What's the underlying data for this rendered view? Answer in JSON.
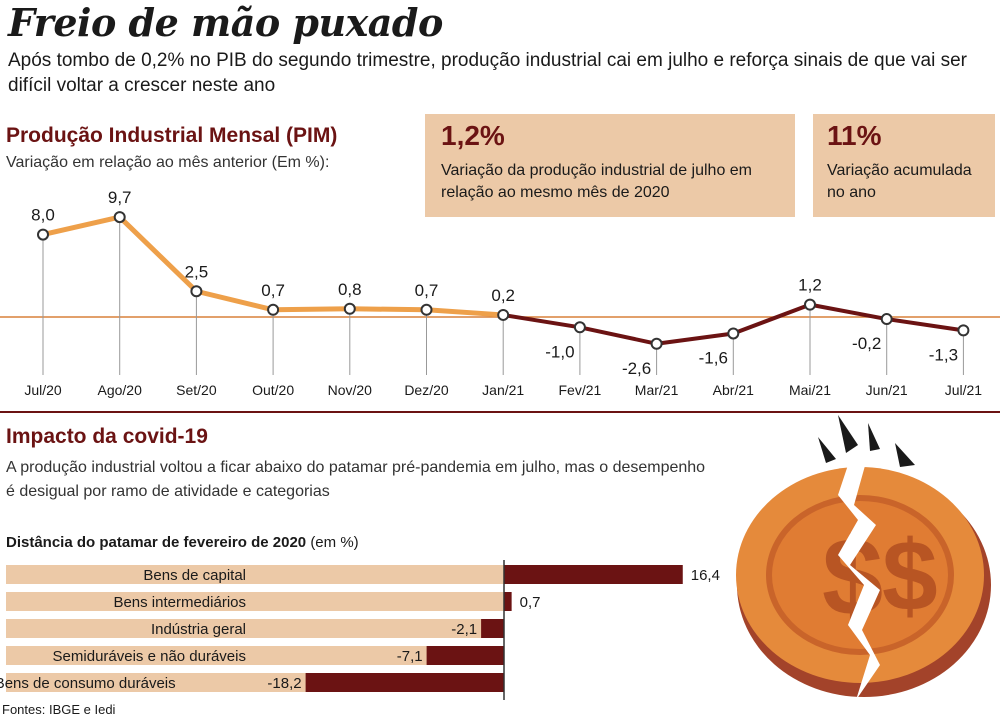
{
  "header": {
    "title": "Freio de mão puxado",
    "subtitle": "Após tombo de 0,2% no PIB do segundo trimestre, produção industrial cai em julho e reforça sinais de que vai ser difícil voltar a crescer neste ano"
  },
  "pim": {
    "title": "Produção Industrial Mensal (PIM)",
    "subtitle": "Variação em relação ao mês anterior (Em %):"
  },
  "cards": [
    {
      "value": "1,2%",
      "text": "Variação da produção industrial de julho em relação ao mesmo mês de 2020"
    },
    {
      "value": "11%",
      "text": "Variação acumulada no ano"
    }
  ],
  "covid": {
    "title": "Impacto da covid-19",
    "text": "A produção industrial voltou a ficar abaixo do patamar pré-pandemia em julho, mas o desempenho é desigual por ramo de atividade e categorias",
    "bar_title": "Distância do patamar de fevereiro de 2020",
    "bar_title_unit": "(em %)"
  },
  "sources": "Fontes: IBGE e Iedi",
  "colors": {
    "orange": "#eea04a",
    "darkred": "#6b1313",
    "beige": "#ecc9a7",
    "accent": "#d8803a"
  },
  "illustration": "broken-coin-icon",
  "chart_data": [
    {
      "type": "line",
      "title": "Produção Industrial Mensal (PIM)",
      "x": [
        "Jul/20",
        "Ago/20",
        "Set/20",
        "Out/20",
        "Nov/20",
        "Dez/20",
        "Jan/21",
        "Fev/21",
        "Mar/21",
        "Abr/21",
        "Mai/21",
        "Jun/21",
        "Jul/21"
      ],
      "values": [
        8.0,
        9.7,
        2.5,
        0.7,
        0.8,
        0.7,
        0.2,
        -1.0,
        -2.6,
        -1.6,
        1.2,
        -0.2,
        -1.3
      ],
      "labels": [
        "8,0",
        "9,7",
        "2,5",
        "0,7",
        "0,8",
        "0,7",
        "0,2",
        "-1,0",
        "-2,6",
        "-1,6",
        "1,2",
        "-0,2",
        "-1,3"
      ],
      "ylim": [
        -3.5,
        11
      ],
      "grid": false
    },
    {
      "type": "bar",
      "orientation": "horizontal",
      "title": "Distância do patamar de fevereiro de 2020 (em %)",
      "categories": [
        "Bens de capital",
        "Bens intermediários",
        "Indústria geral",
        "Semiduráveis e não duráveis",
        "Bens de consumo duráveis"
      ],
      "values": [
        16.4,
        0.7,
        -2.1,
        -7.1,
        -18.2
      ],
      "labels": [
        "16,4",
        "0,7",
        "-2,1",
        "-7,1",
        "-18,2"
      ]
    }
  ]
}
